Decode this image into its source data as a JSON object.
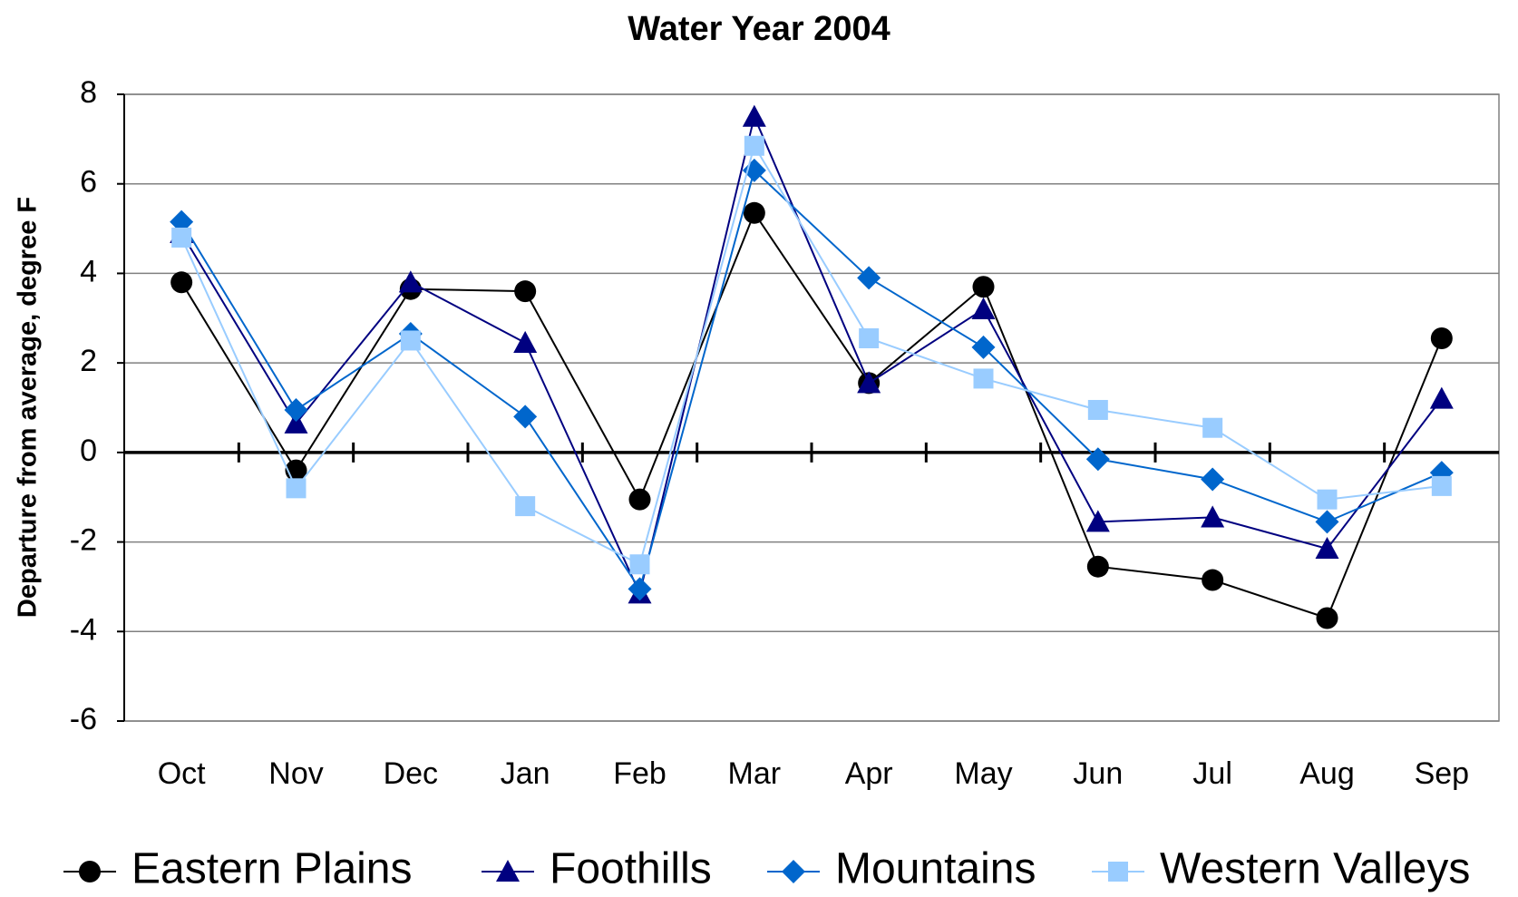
{
  "chart_data": {
    "type": "line",
    "title": "Water Year 2004",
    "y_label": "Departure from average, degree F",
    "categories": [
      "Oct",
      "Nov",
      "Dec",
      "Jan",
      "Feb",
      "Mar",
      "Apr",
      "May",
      "Jun",
      "Jul",
      "Aug",
      "Sep"
    ],
    "series": [
      {
        "name": "Eastern Plains",
        "color": "#000000",
        "marker": "circle",
        "values": [
          3.8,
          -0.4,
          3.65,
          3.6,
          -1.05,
          5.35,
          1.55,
          3.7,
          -2.55,
          -2.85,
          -3.7,
          2.55
        ]
      },
      {
        "name": "Foothills",
        "color": "#000080",
        "marker": "triangle",
        "values": [
          4.9,
          0.65,
          3.8,
          2.45,
          -3.15,
          7.5,
          1.55,
          3.2,
          -1.55,
          -1.45,
          -2.15,
          1.2
        ]
      },
      {
        "name": "Mountains",
        "color": "#0066cc",
        "marker": "diamond",
        "values": [
          5.15,
          0.95,
          2.65,
          0.8,
          -3.05,
          6.3,
          3.9,
          2.35,
          -0.15,
          -0.6,
          -1.55,
          -0.45
        ]
      },
      {
        "name": "Western Valleys",
        "color": "#99ccff",
        "marker": "square",
        "values": [
          4.8,
          -0.8,
          2.5,
          -1.2,
          -2.5,
          6.85,
          2.55,
          1.65,
          0.95,
          0.55,
          -1.05,
          -0.75
        ]
      }
    ],
    "ylim": [
      -6,
      8
    ],
    "yticks": [
      -6,
      -4,
      -2,
      0,
      2,
      4,
      6,
      8
    ],
    "grid": true,
    "legend": "bottom"
  }
}
